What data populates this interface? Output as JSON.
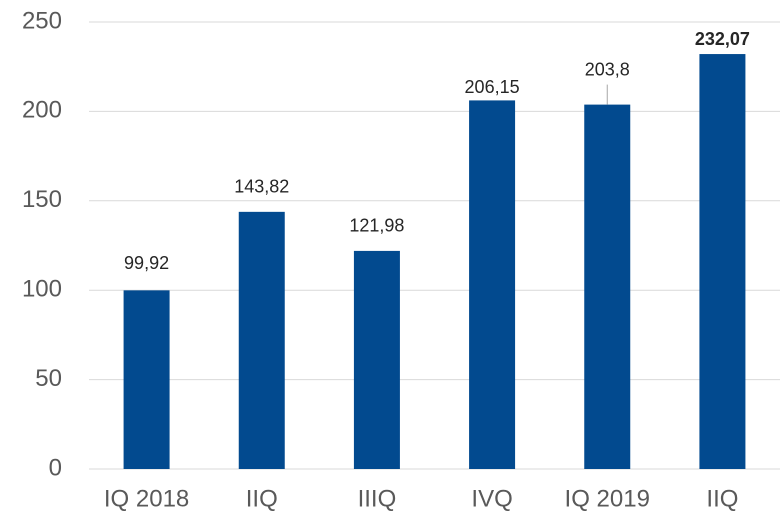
{
  "chart_data": {
    "type": "bar",
    "categories": [
      "IQ 2018",
      "IIQ",
      "IIIQ",
      "IVQ",
      "IQ 2019",
      "IIQ"
    ],
    "values": [
      99.92,
      143.82,
      121.98,
      206.15,
      203.8,
      232.07
    ],
    "value_labels": [
      "99,92",
      "143,82",
      "121,98",
      "206,15",
      "203,8",
      "232,07"
    ],
    "color": "#024a8f",
    "ylim": [
      0,
      250
    ],
    "yticks": [
      0,
      50,
      100,
      150,
      200,
      250
    ],
    "grid": true
  }
}
